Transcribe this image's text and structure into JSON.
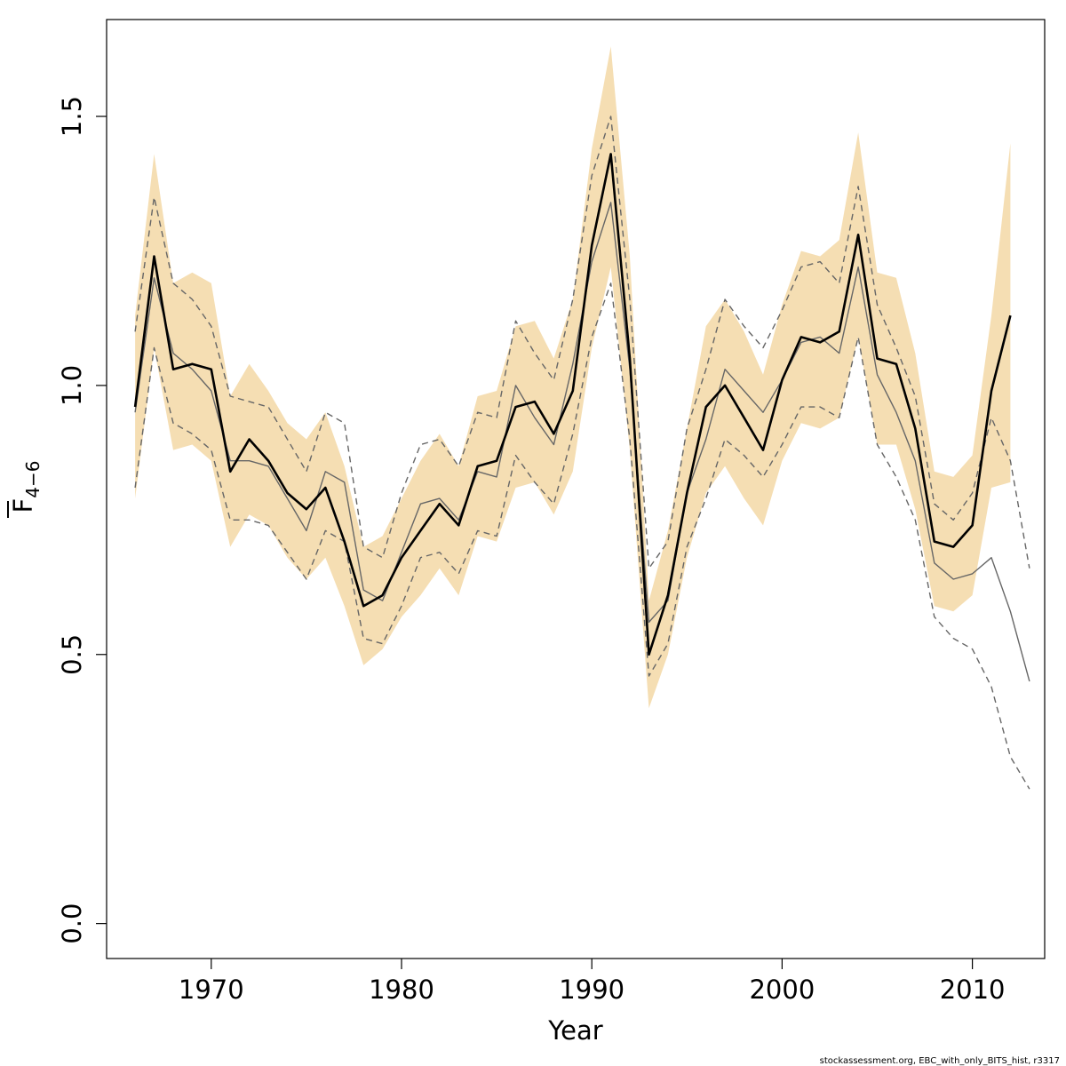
{
  "chart_data": {
    "type": "line",
    "xlabel": "Year",
    "ylabel_main": "F",
    "ylabel_sub": "4−6",
    "xlim": [
      1964.5,
      2013.8
    ],
    "ylim": [
      -0.065,
      1.68
    ],
    "x_ticks": [
      1970,
      1980,
      1990,
      2000,
      2010
    ],
    "x_tick_labels": [
      "1970",
      "1980",
      "1990",
      "2000",
      "2010"
    ],
    "y_ticks": [
      0.0,
      0.5,
      1.0,
      1.5
    ],
    "y_tick_labels": [
      "0.0",
      "0.5",
      "1.0",
      "1.5"
    ],
    "grid": false,
    "credit": "stockassessment.org, EBC_with_only_BITS_hist, r3317",
    "colors": {
      "band": "#f5deb3",
      "main_line": "#000000",
      "alt_line": "#666666"
    },
    "band": {
      "x": [
        1966,
        1967,
        1968,
        1969,
        1970,
        1971,
        1972,
        1973,
        1974,
        1975,
        1976,
        1977,
        1978,
        1979,
        1980,
        1981,
        1982,
        1983,
        1984,
        1985,
        1986,
        1987,
        1988,
        1989,
        1990,
        1991,
        1992,
        1993,
        1994,
        1995,
        1996,
        1997,
        1998,
        1999,
        2000,
        2001,
        2002,
        2003,
        2004,
        2005,
        2006,
        2007,
        2008,
        2009,
        2010,
        2011,
        2012
      ],
      "upper": [
        1.13,
        1.43,
        1.19,
        1.21,
        1.19,
        0.98,
        1.04,
        0.99,
        0.93,
        0.9,
        0.95,
        0.85,
        0.7,
        0.72,
        0.79,
        0.86,
        0.91,
        0.85,
        0.98,
        0.99,
        1.11,
        1.12,
        1.05,
        1.16,
        1.44,
        1.63,
        1.24,
        0.6,
        0.73,
        0.92,
        1.11,
        1.16,
        1.1,
        1.02,
        1.15,
        1.25,
        1.24,
        1.27,
        1.47,
        1.21,
        1.2,
        1.06,
        0.84,
        0.83,
        0.87,
        1.13,
        1.45
      ],
      "lower": [
        0.79,
        1.07,
        0.88,
        0.89,
        0.86,
        0.7,
        0.76,
        0.74,
        0.68,
        0.64,
        0.68,
        0.59,
        0.48,
        0.51,
        0.57,
        0.61,
        0.66,
        0.61,
        0.72,
        0.71,
        0.81,
        0.82,
        0.76,
        0.84,
        1.07,
        1.22,
        0.88,
        0.4,
        0.5,
        0.68,
        0.8,
        0.85,
        0.79,
        0.74,
        0.86,
        0.93,
        0.92,
        0.94,
        1.09,
        0.89,
        0.89,
        0.77,
        0.59,
        0.58,
        0.61,
        0.81,
        0.82
      ]
    },
    "series": [
      {
        "role": "estimate",
        "style": "solid-bold",
        "x": [
          1966,
          1967,
          1968,
          1969,
          1970,
          1971,
          1972,
          1973,
          1974,
          1975,
          1976,
          1977,
          1978,
          1979,
          1980,
          1981,
          1982,
          1983,
          1984,
          1985,
          1986,
          1987,
          1988,
          1989,
          1990,
          1991,
          1992,
          1993,
          1994,
          1995,
          1996,
          1997,
          1998,
          1999,
          2000,
          2001,
          2002,
          2003,
          2004,
          2005,
          2006,
          2007,
          2008,
          2009,
          2010,
          2011,
          2012
        ],
        "values": [
          0.96,
          1.24,
          1.03,
          1.04,
          1.03,
          0.84,
          0.9,
          0.86,
          0.8,
          0.77,
          0.81,
          0.71,
          0.59,
          0.61,
          0.68,
          0.73,
          0.78,
          0.74,
          0.85,
          0.86,
          0.96,
          0.97,
          0.91,
          0.99,
          1.26,
          1.43,
          1.05,
          0.5,
          0.61,
          0.8,
          0.96,
          1.0,
          0.94,
          0.88,
          1.01,
          1.09,
          1.08,
          1.1,
          1.28,
          1.05,
          1.04,
          0.92,
          0.71,
          0.7,
          0.74,
          0.99,
          1.13
        ]
      },
      {
        "role": "alt-estimate",
        "style": "solid-thin",
        "x": [
          1966,
          1967,
          1968,
          1969,
          1970,
          1971,
          1972,
          1973,
          1974,
          1975,
          1976,
          1977,
          1978,
          1979,
          1980,
          1981,
          1982,
          1983,
          1984,
          1985,
          1986,
          1987,
          1988,
          1989,
          1990,
          1991,
          1992,
          1993,
          1994,
          1995,
          1996,
          1997,
          1998,
          1999,
          2000,
          2001,
          2002,
          2003,
          2004,
          2005,
          2006,
          2007,
          2008,
          2009,
          2010,
          2011,
          2012,
          2013
        ],
        "values": [
          0.95,
          1.2,
          1.06,
          1.03,
          0.99,
          0.86,
          0.86,
          0.85,
          0.79,
          0.73,
          0.84,
          0.82,
          0.62,
          0.6,
          0.69,
          0.78,
          0.79,
          0.75,
          0.84,
          0.83,
          1.0,
          0.94,
          0.89,
          1.04,
          1.23,
          1.34,
          1.03,
          0.56,
          0.6,
          0.8,
          0.9,
          1.03,
          0.99,
          0.95,
          1.01,
          1.08,
          1.09,
          1.06,
          1.22,
          1.02,
          0.95,
          0.86,
          0.67,
          0.64,
          0.65,
          0.68,
          0.58,
          0.45
        ]
      },
      {
        "role": "alt-upper",
        "style": "dashed",
        "x": [
          1966,
          1967,
          1968,
          1969,
          1970,
          1971,
          1972,
          1973,
          1974,
          1975,
          1976,
          1977,
          1978,
          1979,
          1980,
          1981,
          1982,
          1983,
          1984,
          1985,
          1986,
          1987,
          1988,
          1989,
          1990,
          1991,
          1992,
          1993,
          1994,
          1995,
          1996,
          1997,
          1998,
          1999,
          2000,
          2001,
          2002,
          2003,
          2004,
          2005,
          2006,
          2007,
          2008,
          2009,
          2010,
          2011,
          2012,
          2013
        ],
        "values": [
          1.1,
          1.35,
          1.19,
          1.16,
          1.11,
          0.98,
          0.97,
          0.96,
          0.9,
          0.84,
          0.95,
          0.93,
          0.7,
          0.68,
          0.8,
          0.89,
          0.9,
          0.85,
          0.95,
          0.94,
          1.12,
          1.06,
          1.01,
          1.16,
          1.39,
          1.5,
          1.16,
          0.66,
          0.71,
          0.92,
          1.03,
          1.16,
          1.11,
          1.07,
          1.14,
          1.22,
          1.23,
          1.19,
          1.37,
          1.15,
          1.07,
          0.98,
          0.78,
          0.75,
          0.8,
          0.94,
          0.86,
          0.66
        ]
      },
      {
        "role": "alt-lower",
        "style": "dashed",
        "x": [
          1966,
          1967,
          1968,
          1969,
          1970,
          1971,
          1972,
          1973,
          1974,
          1975,
          1976,
          1977,
          1978,
          1979,
          1980,
          1981,
          1982,
          1983,
          1984,
          1985,
          1986,
          1987,
          1988,
          1989,
          1990,
          1991,
          1992,
          1993,
          1994,
          1995,
          1996,
          1997,
          1998,
          1999,
          2000,
          2001,
          2002,
          2003,
          2004,
          2005,
          2006,
          2007,
          2008,
          2009,
          2010,
          2011,
          2012,
          2013
        ],
        "values": [
          0.81,
          1.07,
          0.93,
          0.91,
          0.88,
          0.75,
          0.75,
          0.74,
          0.69,
          0.64,
          0.73,
          0.71,
          0.53,
          0.52,
          0.59,
          0.68,
          0.69,
          0.65,
          0.73,
          0.72,
          0.87,
          0.82,
          0.78,
          0.91,
          1.09,
          1.19,
          0.9,
          0.46,
          0.52,
          0.7,
          0.79,
          0.9,
          0.87,
          0.83,
          0.89,
          0.96,
          0.96,
          0.94,
          1.09,
          0.89,
          0.83,
          0.75,
          0.57,
          0.53,
          0.51,
          0.44,
          0.31,
          0.25
        ]
      }
    ]
  }
}
